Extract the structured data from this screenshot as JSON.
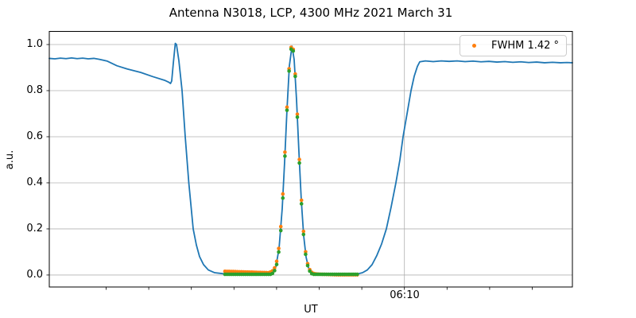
{
  "chart_data": {
    "type": "line+scatter",
    "title": "Antenna N3018, LCP, 4300 MHz 2021 March 31",
    "xlabel": "UT",
    "ylabel": "a.u.",
    "x_tick_label": "06:10",
    "x_axis": {
      "unit": "minutes relative to 06:10 UT",
      "xlim": [
        -8.334,
        3.942
      ],
      "tick_positions": [
        -7,
        -6,
        -5,
        -4,
        -3,
        -2,
        -1,
        0,
        1,
        2,
        3
      ],
      "tick_labels": [
        "",
        "",
        "",
        "",
        "",
        "",
        "",
        "06:10",
        "",
        "",
        ""
      ]
    },
    "y_axis": {
      "ylim": [
        -0.052,
        1.057
      ]
    },
    "y_ticks": [
      {
        "value": 0.0,
        "label": "0.0"
      },
      {
        "value": 0.2,
        "label": "0.2"
      },
      {
        "value": 0.4,
        "label": "0.4"
      },
      {
        "value": 0.6,
        "label": "0.6"
      },
      {
        "value": 0.8,
        "label": "0.8"
      },
      {
        "value": 1.0,
        "label": "1.0"
      }
    ],
    "grid": {
      "color": "#b0b0b0",
      "horizontal_at": [
        0.0,
        0.2,
        0.4,
        0.6,
        0.8,
        1.0
      ],
      "vertical_at": [
        0
      ]
    },
    "legend": {
      "label": "FWHM 1.42 °",
      "marker_color": "#ff7f0e",
      "position": "upper right"
    },
    "colors": {
      "signal": "#1f77b4",
      "fit": "#ff7f0e",
      "data": "#2ca02c"
    },
    "series": [
      {
        "name": "scan_signal",
        "type": "line",
        "color": "#1f77b4",
        "width": 1.8,
        "points": [
          [
            -8.334,
            0.94
          ],
          [
            -8.203,
            0.938
          ],
          [
            -8.073,
            0.941
          ],
          [
            -7.942,
            0.939
          ],
          [
            -7.811,
            0.942
          ],
          [
            -7.681,
            0.939
          ],
          [
            -7.55,
            0.941
          ],
          [
            -7.42,
            0.938
          ],
          [
            -7.289,
            0.94
          ],
          [
            -7.159,
            0.936
          ],
          [
            -6.972,
            0.928
          ],
          [
            -6.748,
            0.908
          ],
          [
            -6.506,
            0.894
          ],
          [
            -6.188,
            0.879
          ],
          [
            -5.909,
            0.861
          ],
          [
            -5.629,
            0.845
          ],
          [
            -5.535,
            0.837
          ],
          [
            -5.489,
            0.831
          ],
          [
            -5.461,
            0.842
          ],
          [
            -5.423,
            0.92
          ],
          [
            -5.377,
            1.005
          ],
          [
            -5.349,
            1.0
          ],
          [
            -5.293,
            0.93
          ],
          [
            -5.218,
            0.8
          ],
          [
            -5.144,
            0.6
          ],
          [
            -5.06,
            0.4
          ],
          [
            -4.957,
            0.2
          ],
          [
            -4.882,
            0.13
          ],
          [
            -4.808,
            0.08
          ],
          [
            -4.714,
            0.045
          ],
          [
            -4.602,
            0.022
          ],
          [
            -4.453,
            0.01
          ],
          [
            -4.267,
            0.006
          ],
          [
            -4.08,
            0.004
          ],
          [
            -3.707,
            0.004
          ],
          [
            -3.334,
            0.005
          ],
          [
            -3.185,
            0.006
          ],
          [
            -3.091,
            0.011
          ],
          [
            -3.017,
            0.036
          ],
          [
            -2.942,
            0.115
          ],
          [
            -2.868,
            0.288
          ],
          [
            -2.812,
            0.489
          ],
          [
            -2.756,
            0.717
          ],
          [
            -2.7,
            0.908
          ],
          [
            -2.638,
            0.993
          ],
          [
            -2.588,
            0.935
          ],
          [
            -2.532,
            0.761
          ],
          [
            -2.476,
            0.535
          ],
          [
            -2.42,
            0.324
          ],
          [
            -2.364,
            0.17
          ],
          [
            -2.308,
            0.078
          ],
          [
            -2.252,
            0.032
          ],
          [
            -2.196,
            0.014
          ],
          [
            -2.121,
            0.006
          ],
          [
            -1.935,
            0.004
          ],
          [
            -1.655,
            0.004
          ],
          [
            -1.375,
            0.004
          ],
          [
            -1.095,
            0.005
          ],
          [
            -0.983,
            0.01
          ],
          [
            -0.871,
            0.022
          ],
          [
            -0.759,
            0.045
          ],
          [
            -0.647,
            0.085
          ],
          [
            -0.535,
            0.135
          ],
          [
            -0.424,
            0.2
          ],
          [
            -0.312,
            0.295
          ],
          [
            -0.2,
            0.4
          ],
          [
            -0.106,
            0.5
          ],
          [
            -0.032,
            0.6
          ],
          [
            0.062,
            0.7
          ],
          [
            0.155,
            0.8
          ],
          [
            0.229,
            0.862
          ],
          [
            0.304,
            0.905
          ],
          [
            0.36,
            0.925
          ],
          [
            0.491,
            0.929
          ],
          [
            0.677,
            0.926
          ],
          [
            0.864,
            0.929
          ],
          [
            1.05,
            0.927
          ],
          [
            1.237,
            0.929
          ],
          [
            1.424,
            0.926
          ],
          [
            1.61,
            0.928
          ],
          [
            1.797,
            0.925
          ],
          [
            1.983,
            0.927
          ],
          [
            2.17,
            0.924
          ],
          [
            2.356,
            0.926
          ],
          [
            2.543,
            0.923
          ],
          [
            2.73,
            0.925
          ],
          [
            2.916,
            0.922
          ],
          [
            3.103,
            0.924
          ],
          [
            3.289,
            0.921
          ],
          [
            3.476,
            0.923
          ],
          [
            3.662,
            0.921
          ],
          [
            3.812,
            0.922
          ],
          [
            3.942,
            0.921
          ]
        ]
      },
      {
        "name": "gaussian_fit",
        "type": "scatter",
        "color": "#ff7f0e",
        "radius": 2.3,
        "points": [
          [
            -4.211,
            0.016
          ],
          [
            -4.162,
            0.0157
          ],
          [
            -4.114,
            0.0154
          ],
          [
            -4.065,
            0.0151
          ],
          [
            -4.017,
            0.0149
          ],
          [
            -3.968,
            0.0146
          ],
          [
            -3.92,
            0.0143
          ],
          [
            -3.871,
            0.014
          ],
          [
            -3.823,
            0.0137
          ],
          [
            -3.774,
            0.0134
          ],
          [
            -3.726,
            0.0131
          ],
          [
            -3.677,
            0.0129
          ],
          [
            -3.629,
            0.0126
          ],
          [
            -3.58,
            0.0123
          ],
          [
            -3.532,
            0.012
          ],
          [
            -3.483,
            0.0117
          ],
          [
            -3.435,
            0.0114
          ],
          [
            -3.386,
            0.0111
          ],
          [
            -3.338,
            0.0109
          ],
          [
            -3.289,
            0.0106
          ],
          [
            -3.241,
            0.0103
          ],
          [
            -3.192,
            0.01
          ],
          [
            -3.144,
            0.0131
          ],
          [
            -3.095,
            0.0181
          ],
          [
            -3.047,
            0.0309
          ],
          [
            -2.998,
            0.0593
          ],
          [
            -2.95,
            0.1151
          ],
          [
            -2.901,
            0.2102
          ],
          [
            -2.853,
            0.3517
          ],
          [
            -2.804,
            0.5331
          ],
          [
            -2.756,
            0.7282
          ],
          [
            -2.707,
            0.8948
          ],
          [
            -2.659,
            0.9879
          ],
          [
            -2.61,
            0.9794
          ],
          [
            -2.562,
            0.8722
          ],
          [
            -2.513,
            0.6975
          ],
          [
            -2.465,
            0.5014
          ],
          [
            -2.416,
            0.3244
          ],
          [
            -2.368,
            0.1894
          ],
          [
            -2.319,
            0.1005
          ],
          [
            -2.271,
            0.0493
          ],
          [
            -2.222,
            0.0233
          ],
          [
            -2.174,
            0.0115
          ],
          [
            -2.125,
            0.0066
          ],
          [
            -2.077,
            0.0047
          ],
          [
            -2.028,
            0.0039
          ],
          [
            -1.98,
            0.0035
          ],
          [
            -1.931,
            0.0031
          ],
          [
            -1.883,
            0.0029
          ],
          [
            -1.834,
            0.0026
          ],
          [
            -1.786,
            0.0023
          ],
          [
            -1.737,
            0.002
          ],
          [
            -1.689,
            0.0017
          ],
          [
            -1.64,
            0.0014
          ],
          [
            -1.592,
            0.0012
          ],
          [
            -1.543,
            0.001
          ],
          [
            -1.495,
            0.001
          ],
          [
            -1.446,
            0.001
          ],
          [
            -1.398,
            0.001
          ],
          [
            -1.349,
            0.001
          ],
          [
            -1.301,
            0.001
          ],
          [
            -1.252,
            0.001
          ],
          [
            -1.204,
            0.001
          ],
          [
            -1.155,
            0.001
          ],
          [
            -1.107,
            0.001
          ]
        ]
      },
      {
        "name": "data_points",
        "type": "scatter",
        "color": "#2ca02c",
        "radius": 2.3,
        "points": [
          [
            -4.211,
            0.003
          ],
          [
            -4.162,
            0.003
          ],
          [
            -4.114,
            0.003
          ],
          [
            -4.065,
            0.003
          ],
          [
            -4.017,
            0.003
          ],
          [
            -3.968,
            0.003
          ],
          [
            -3.92,
            0.003
          ],
          [
            -3.871,
            0.003
          ],
          [
            -3.823,
            0.003
          ],
          [
            -3.774,
            0.003
          ],
          [
            -3.726,
            0.003
          ],
          [
            -3.677,
            0.003
          ],
          [
            -3.629,
            0.003
          ],
          [
            -3.58,
            0.003
          ],
          [
            -3.532,
            0.003
          ],
          [
            -3.483,
            0.003
          ],
          [
            -3.435,
            0.003
          ],
          [
            -3.386,
            0.003
          ],
          [
            -3.338,
            0.003
          ],
          [
            -3.289,
            0.003
          ],
          [
            -3.241,
            0.003
          ],
          [
            -3.192,
            0.003
          ],
          [
            -3.144,
            0.003
          ],
          [
            -3.095,
            0.007
          ],
          [
            -3.047,
            0.019
          ],
          [
            -2.998,
            0.046
          ],
          [
            -2.95,
            0.1
          ],
          [
            -2.901,
            0.193
          ],
          [
            -2.853,
            0.334
          ],
          [
            -2.804,
            0.516
          ],
          [
            -2.756,
            0.715
          ],
          [
            -2.707,
            0.885
          ],
          [
            -2.659,
            0.98
          ],
          [
            -2.61,
            0.972
          ],
          [
            -2.562,
            0.862
          ],
          [
            -2.513,
            0.685
          ],
          [
            -2.465,
            0.486
          ],
          [
            -2.416,
            0.309
          ],
          [
            -2.368,
            0.176
          ],
          [
            -2.319,
            0.09
          ],
          [
            -2.271,
            0.041
          ],
          [
            -2.222,
            0.017
          ],
          [
            -2.174,
            0.006
          ],
          [
            -2.125,
            0.003
          ],
          [
            -2.077,
            0.003
          ],
          [
            -2.028,
            0.003
          ],
          [
            -1.98,
            0.003
          ],
          [
            -1.931,
            0.003
          ],
          [
            -1.883,
            0.003
          ],
          [
            -1.834,
            0.003
          ],
          [
            -1.786,
            0.003
          ],
          [
            -1.737,
            0.003
          ],
          [
            -1.689,
            0.003
          ],
          [
            -1.64,
            0.003
          ],
          [
            -1.592,
            0.003
          ],
          [
            -1.543,
            0.003
          ],
          [
            -1.495,
            0.003
          ],
          [
            -1.446,
            0.003
          ],
          [
            -1.398,
            0.003
          ],
          [
            -1.349,
            0.003
          ],
          [
            -1.301,
            0.003
          ],
          [
            -1.252,
            0.003
          ],
          [
            -1.204,
            0.003
          ],
          [
            -1.155,
            0.003
          ],
          [
            -1.107,
            0.003
          ]
        ]
      }
    ]
  }
}
